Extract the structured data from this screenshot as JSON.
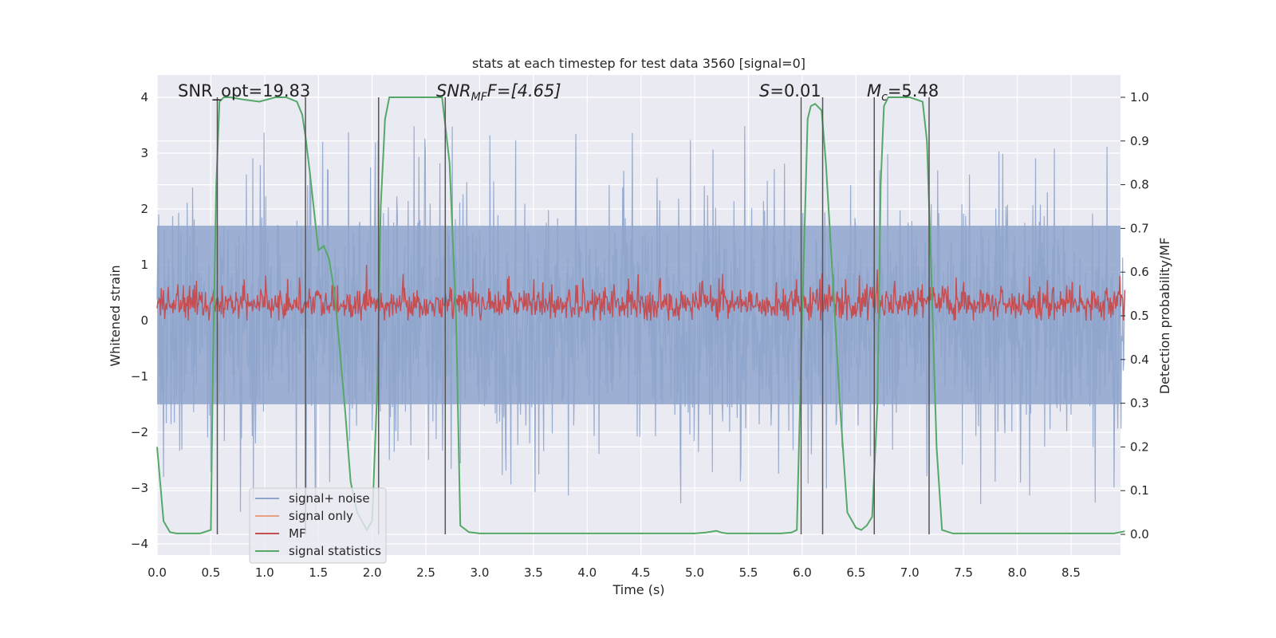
{
  "chart_data": {
    "type": "line",
    "title": "stats at each timestep for test data 3560 [signal=0]",
    "xlabel": "Time (s)",
    "ylabel": "Whitened strain",
    "ylabel_right": "Detection probability/MF",
    "xlim": [
      0,
      9.0
    ],
    "ylim": [
      -4.2,
      4.4
    ],
    "ylim_right": [
      -0.05,
      1.04
    ],
    "xticks": [
      "0.0",
      "0.5",
      "1.0",
      "1.5",
      "2.0",
      "2.5",
      "3.0",
      "3.5",
      "4.0",
      "4.5",
      "5.0",
      "5.5",
      "6.0",
      "6.5",
      "7.0",
      "7.5",
      "8.0",
      "8.5"
    ],
    "yticks": [
      "-4",
      "-3",
      "-2",
      "-1",
      "0",
      "1",
      "2",
      "3",
      "4"
    ],
    "yticks_right": [
      "0.0",
      "0.1",
      "0.2",
      "0.3",
      "0.4",
      "0.5",
      "0.6",
      "0.7",
      "0.8",
      "0.9",
      "1.0"
    ],
    "grid": true,
    "legend_placement": "lower-left",
    "annotations": {
      "snr_opt": "SNR_opt=19.83",
      "snr_mf_prefix": "SNR",
      "snr_mf_sub": "MF",
      "snr_mf_rest": "F=[4.65]",
      "s_prefix": "S",
      "s_rest": "=0.01",
      "mc_prefix": "M",
      "mc_sub": "c",
      "mc_rest": "=5.48"
    },
    "colors": {
      "noise": "#8fa5cc",
      "signal_only": "#e8a07e",
      "mf": "#c44e52",
      "statistics": "#55a868",
      "vline": "#555555",
      "background": "#eaeaf2"
    },
    "series": [
      {
        "name": "signal+ noise",
        "description_values": "dense whitened strain noise centered at 0",
        "band_core": [
          -1.5,
          1.7
        ],
        "extreme_range": [
          -3.9,
          3.6
        ]
      },
      {
        "name": "signal only",
        "values": []
      },
      {
        "name": "MF",
        "band_core": [
          0.0,
          0.85
        ],
        "peak_value": 1.0
      },
      {
        "name": "signal statistics",
        "x": [
          0.0,
          0.06,
          0.12,
          0.18,
          0.25,
          0.3,
          0.4,
          0.45,
          0.5,
          0.52,
          0.55,
          0.58,
          0.62,
          0.68,
          0.8,
          0.95,
          1.1,
          1.2,
          1.3,
          1.35,
          1.38,
          1.42,
          1.46,
          1.5,
          1.55,
          1.6,
          1.65,
          1.7,
          1.75,
          1.8,
          1.86,
          1.95,
          2.0,
          2.05,
          2.08,
          2.12,
          2.16,
          2.2,
          2.3,
          2.5,
          2.65,
          2.72,
          2.78,
          2.82,
          2.9,
          3.0,
          3.5,
          4.0,
          4.5,
          5.0,
          5.1,
          5.2,
          5.25,
          5.3,
          5.4,
          5.8,
          5.9,
          5.95,
          6.0,
          6.05,
          6.08,
          6.12,
          6.18,
          6.22,
          6.28,
          6.35,
          6.42,
          6.5,
          6.55,
          6.6,
          6.65,
          6.7,
          6.73,
          6.76,
          6.8,
          6.85,
          7.0,
          7.12,
          7.16,
          7.2,
          7.25,
          7.3,
          7.4,
          7.6,
          8.0,
          8.5,
          8.9,
          9.0
        ],
        "values": [
          0.2,
          0.03,
          0.005,
          0.002,
          0.002,
          0.002,
          0.002,
          0.006,
          0.01,
          0.4,
          0.8,
          0.99,
          1.0,
          1.0,
          0.995,
          0.99,
          1.0,
          1.0,
          0.99,
          0.96,
          0.91,
          0.83,
          0.74,
          0.65,
          0.66,
          0.63,
          0.55,
          0.42,
          0.28,
          0.12,
          0.05,
          0.01,
          0.03,
          0.35,
          0.75,
          0.95,
          1.0,
          1.0,
          1.0,
          1.0,
          1.0,
          0.85,
          0.5,
          0.02,
          0.005,
          0.002,
          0.002,
          0.002,
          0.002,
          0.002,
          0.004,
          0.008,
          0.004,
          0.002,
          0.002,
          0.002,
          0.004,
          0.01,
          0.5,
          0.95,
          0.98,
          0.985,
          0.97,
          0.85,
          0.6,
          0.3,
          0.05,
          0.015,
          0.01,
          0.02,
          0.04,
          0.3,
          0.8,
          0.98,
          1.0,
          1.0,
          1.0,
          0.99,
          0.9,
          0.6,
          0.2,
          0.01,
          0.002,
          0.002,
          0.002,
          0.002,
          0.002,
          0.007
        ]
      }
    ],
    "vlines_x": [
      0.56,
      1.38,
      2.06,
      2.68,
      5.99,
      6.19,
      6.67,
      7.18
    ]
  },
  "legend": [
    {
      "label": "signal+ noise",
      "color": "#8fa5cc"
    },
    {
      "label": "signal only",
      "color": "#e8a07e"
    },
    {
      "label": "MF",
      "color": "#c44e52"
    },
    {
      "label": "signal statistics",
      "color": "#55a868"
    }
  ]
}
